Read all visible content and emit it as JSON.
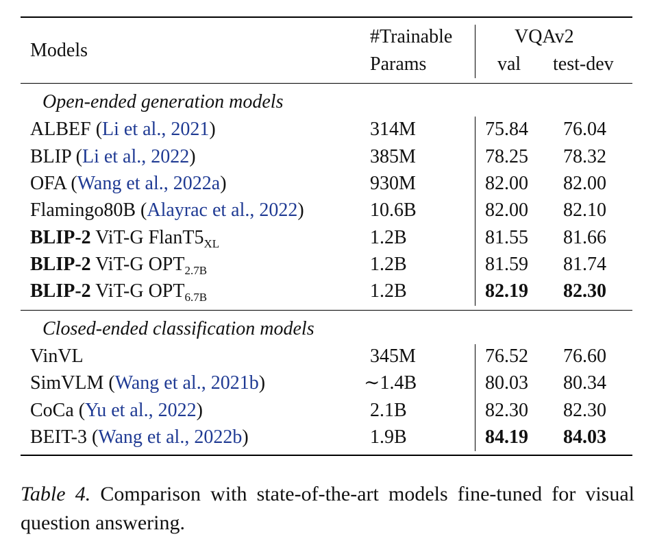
{
  "header": {
    "models": "Models",
    "params_line1": "#Trainable",
    "params_line2": "Params",
    "group": "VQAv2",
    "val": "val",
    "testdev": "test-dev"
  },
  "sections": [
    {
      "title": "Open-ended generation models",
      "rows": [
        {
          "model": "ALBEF",
          "cite_author": "Li et al.",
          "cite_year": "2021",
          "params": "314M",
          "val": "75.84",
          "testdev": "76.04"
        },
        {
          "model": "BLIP",
          "cite_author": "Li et al.",
          "cite_year": "2022",
          "params": "385M",
          "val": "78.25",
          "testdev": "78.32"
        },
        {
          "model": "OFA",
          "cite_author": "Wang et al.",
          "cite_year": "2022a",
          "params": "930M",
          "val": "82.00",
          "testdev": "82.00"
        },
        {
          "model": "Flamingo80B",
          "cite_author": "Alayrac et al.",
          "cite_year": "2022",
          "params": "10.6B",
          "val": "82.00",
          "testdev": "82.10"
        },
        {
          "model_bold": "BLIP-2",
          "model_rest": "ViT-G FlanT5",
          "model_sub": "XL",
          "params": "1.2B",
          "val": "81.55",
          "testdev": "81.66"
        },
        {
          "model_bold": "BLIP-2",
          "model_rest": "ViT-G OPT",
          "model_sub": "2.7B",
          "params": "1.2B",
          "val": "81.59",
          "testdev": "81.74"
        },
        {
          "model_bold": "BLIP-2",
          "model_rest": "ViT-G OPT",
          "model_sub": "6.7B",
          "params": "1.2B",
          "val": "82.19",
          "testdev": "82.30"
        }
      ]
    },
    {
      "title": "Closed-ended classification models",
      "rows": [
        {
          "model": "VinVL",
          "params": "345M",
          "val": "76.52",
          "testdev": "76.60"
        },
        {
          "model": "SimVLM",
          "cite_author": "Wang et al.",
          "cite_year": "2021b",
          "params": "∼1.4B",
          "val": "80.03",
          "testdev": "80.34"
        },
        {
          "model": "CoCa",
          "cite_author": "Yu et al.",
          "cite_year": "2022",
          "params": "2.1B",
          "val": "82.30",
          "testdev": "82.30"
        },
        {
          "model": "BEIT-3",
          "cite_author": "Wang et al.",
          "cite_year": "2022b",
          "params": "1.9B",
          "val": "84.19",
          "testdev": "84.03"
        }
      ]
    }
  ],
  "caption": {
    "label": "Table 4.",
    "text": "Comparison with state-of-the-art models fine-tuned for visual question answering."
  }
}
